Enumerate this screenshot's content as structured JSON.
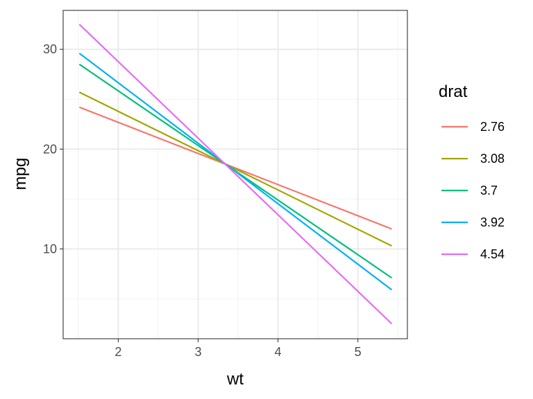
{
  "chart_data": {
    "type": "line",
    "xlabel": "wt",
    "ylabel": "mpg",
    "xlim": [
      1.31,
      5.62
    ],
    "ylim": [
      1.0,
      33.9
    ],
    "x_ticks": [
      2,
      3,
      4,
      5
    ],
    "y_ticks": [
      10,
      20,
      30
    ],
    "x_minor_ticks": [
      1.5,
      2.5,
      3.5,
      4.5,
      5.5
    ],
    "y_minor_ticks": [
      5,
      15,
      25
    ],
    "grid": true,
    "legend": {
      "title": "drat",
      "placement": "right"
    },
    "series": [
      {
        "name": "2.76",
        "color": "#F8766D",
        "x": [
          1.513,
          5.424
        ],
        "y": [
          24.2,
          12.0
        ]
      },
      {
        "name": "3.08",
        "color": "#A3A500",
        "x": [
          1.513,
          5.424
        ],
        "y": [
          25.7,
          10.3
        ]
      },
      {
        "name": "3.7",
        "color": "#00BF7D",
        "x": [
          1.513,
          5.424
        ],
        "y": [
          28.5,
          7.1
        ]
      },
      {
        "name": "3.92",
        "color": "#00B0F6",
        "x": [
          1.513,
          5.424
        ],
        "y": [
          29.6,
          5.9
        ]
      },
      {
        "name": "4.54",
        "color": "#E76BF3",
        "x": [
          1.513,
          5.424
        ],
        "y": [
          32.5,
          2.5
        ]
      }
    ]
  }
}
